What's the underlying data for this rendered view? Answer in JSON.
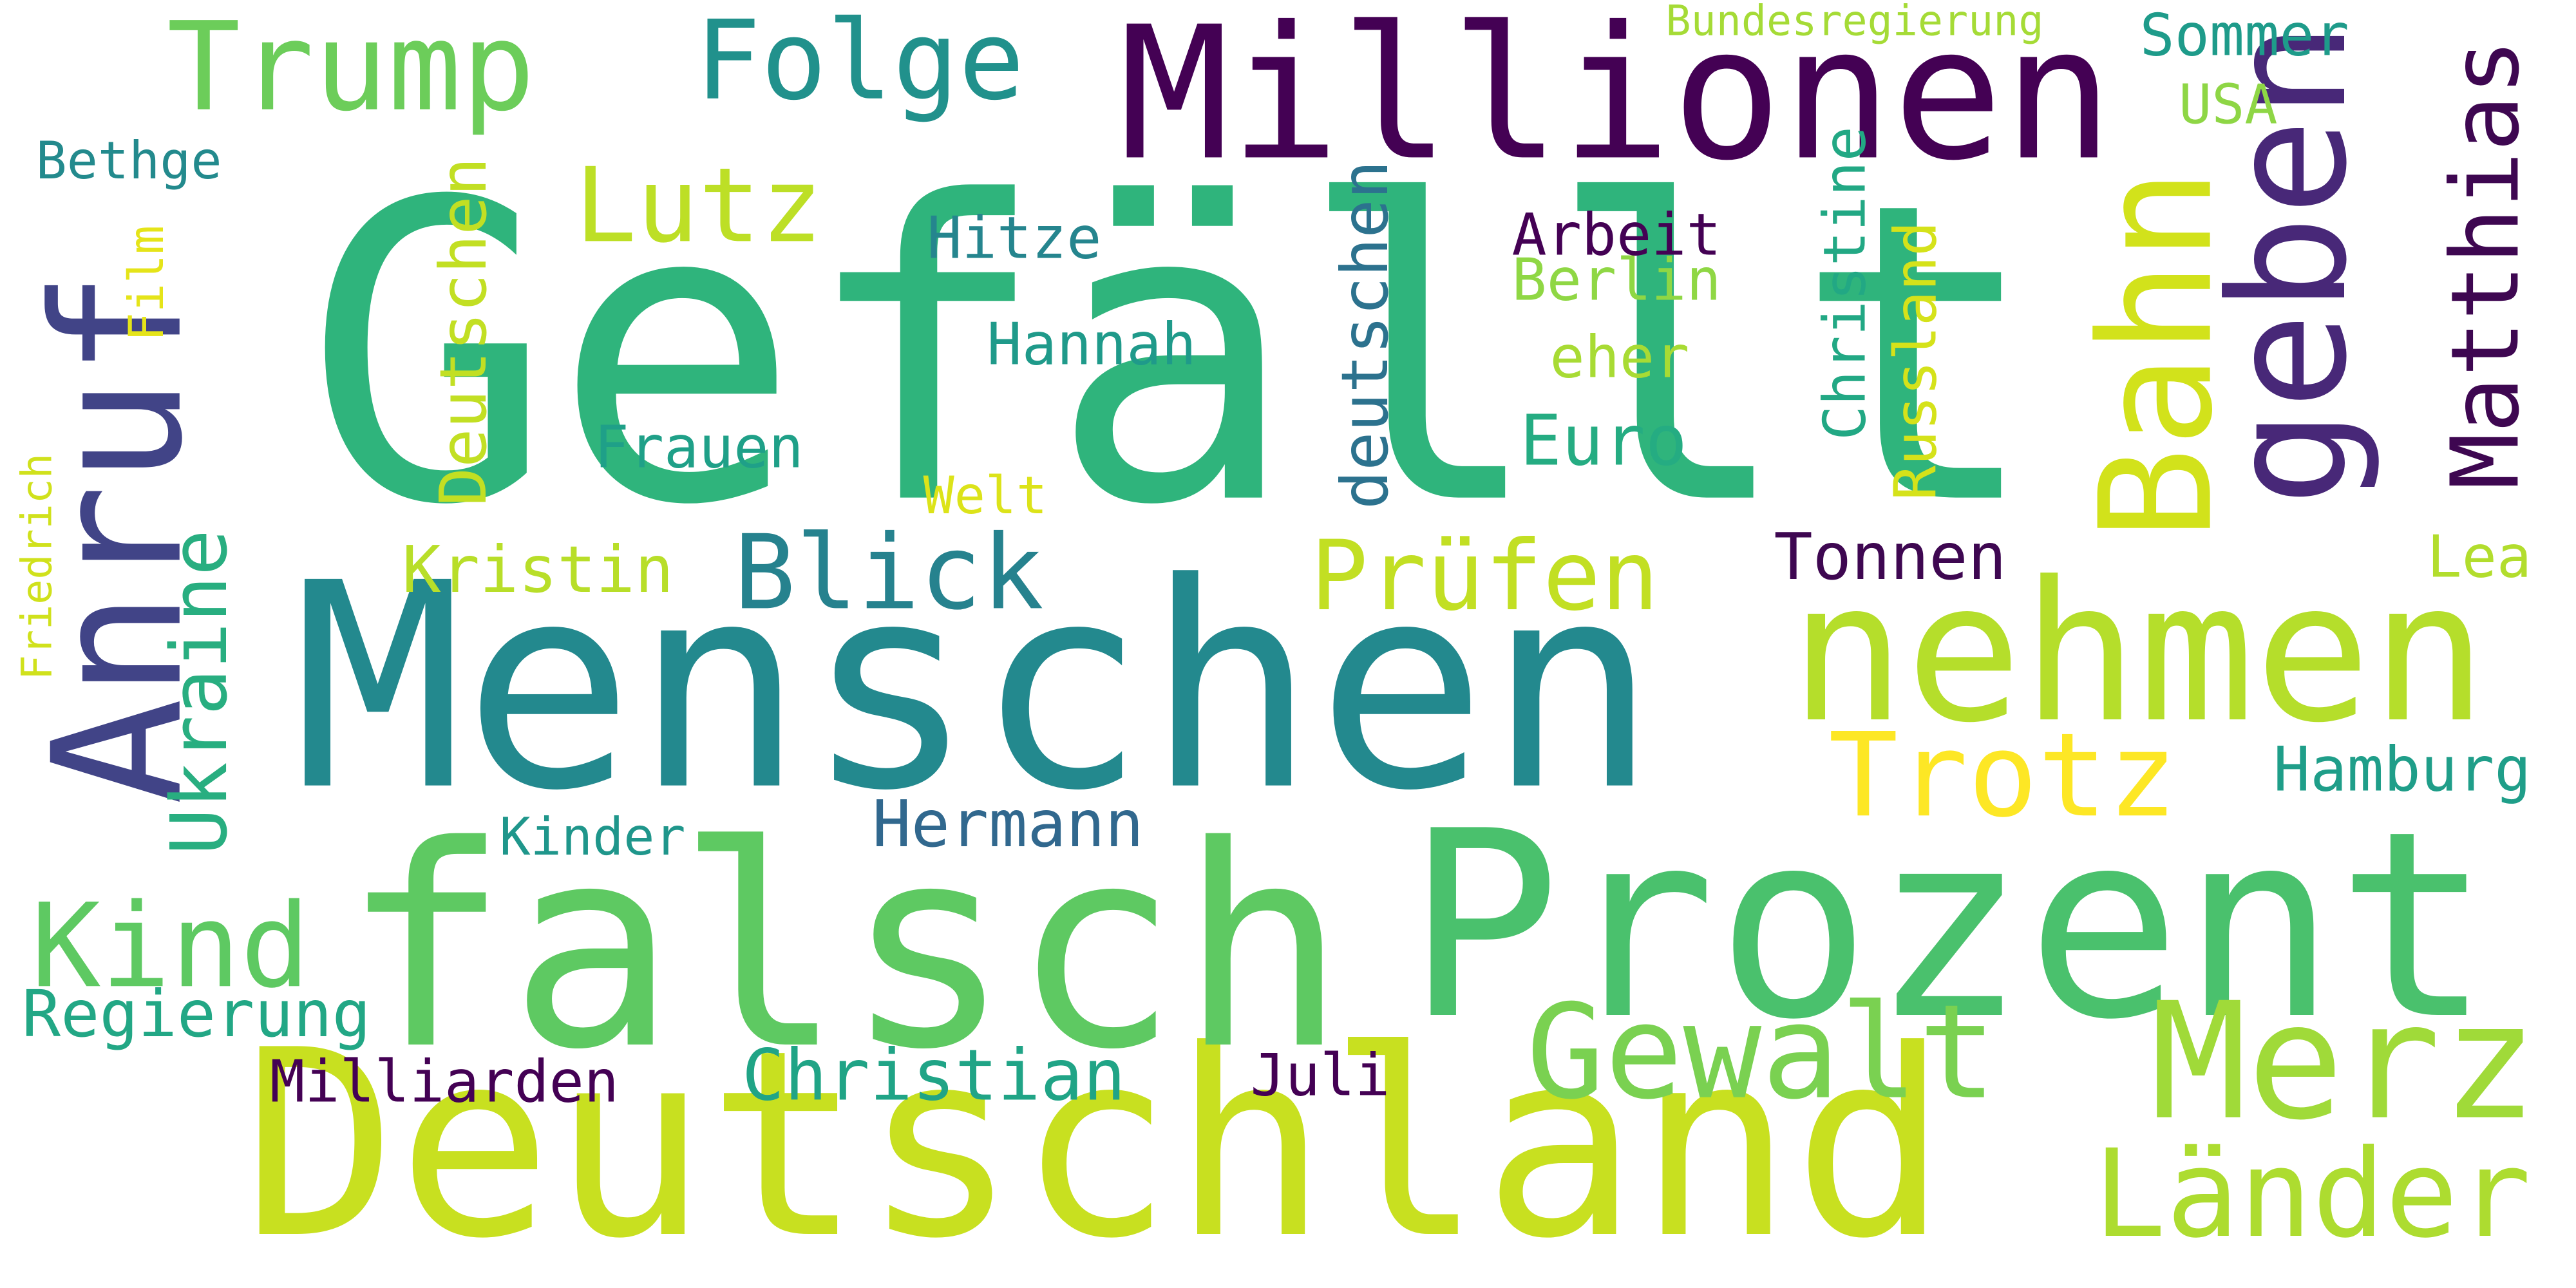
{
  "cloud": {
    "words": [
      {
        "text": "Gefällt",
        "color": "#2fb47c"
      },
      {
        "text": "Menschen",
        "color": "#23898e"
      },
      {
        "text": "Deutschland",
        "color": "#c8e020"
      },
      {
        "text": "falsch",
        "color": "#5ec962"
      },
      {
        "text": "Prozent",
        "color": "#4ac16d"
      },
      {
        "text": "Millionen",
        "color": "#440154"
      },
      {
        "text": "nehmen",
        "color": "#b5de2b"
      },
      {
        "text": "Anruf",
        "color": "#414487"
      },
      {
        "text": "Trump",
        "color": "#6ccd5a"
      },
      {
        "text": "geben",
        "color": "#482878"
      },
      {
        "text": "Bahn",
        "color": "#d2e21b"
      },
      {
        "text": "Trotz",
        "color": "#fde725"
      },
      {
        "text": "Merz",
        "color": "#a0da39"
      },
      {
        "text": "Folge",
        "color": "#21918c"
      },
      {
        "text": "Blick",
        "color": "#26828e"
      },
      {
        "text": "Gewalt",
        "color": "#7ad151"
      },
      {
        "text": "Länder",
        "color": "#addc30"
      },
      {
        "text": "Matthias",
        "color": "#3e0751"
      },
      {
        "text": "Kind",
        "color": "#5ec962"
      },
      {
        "text": "Lutz",
        "color": "#bddf26"
      },
      {
        "text": "Prüfen",
        "color": "#c2df23"
      },
      {
        "text": "Hermann",
        "color": "#31688e"
      },
      {
        "text": "Euro",
        "color": "#25ac82"
      },
      {
        "text": "Ukraine",
        "color": "#28ae80"
      },
      {
        "text": "Hamburg",
        "color": "#1f9e89"
      },
      {
        "text": "Christian",
        "color": "#20a486"
      },
      {
        "text": "Regierung",
        "color": "#22a785"
      },
      {
        "text": "Milliarden",
        "color": "#440154"
      },
      {
        "text": "deutschen",
        "color": "#2c728e"
      },
      {
        "text": "Deutschen",
        "color": "#c2df23"
      },
      {
        "text": "Tonnen",
        "color": "#3e0751"
      },
      {
        "text": "Russland",
        "color": "#d5e21a"
      },
      {
        "text": "Christine",
        "color": "#22a884"
      },
      {
        "text": "Frauen",
        "color": "#1fa088"
      },
      {
        "text": "Kristin",
        "color": "#b8de29"
      },
      {
        "text": "Hannah",
        "color": "#1f9a8a"
      },
      {
        "text": "Hitze",
        "color": "#25858e"
      },
      {
        "text": "Berlin",
        "color": "#8fd744"
      },
      {
        "text": "Arbeit",
        "color": "#440154"
      },
      {
        "text": "eher",
        "color": "#a8db34"
      },
      {
        "text": "Welt",
        "color": "#dce319"
      },
      {
        "text": "Sommer",
        "color": "#1e9b8a"
      },
      {
        "text": "USA",
        "color": "#8ed645"
      },
      {
        "text": "Bethge",
        "color": "#238a8d"
      },
      {
        "text": "Kinder",
        "color": "#1f968b"
      },
      {
        "text": "Juli",
        "color": "#440154"
      },
      {
        "text": "Lea",
        "color": "#b2dd2d"
      },
      {
        "text": "Friedrich",
        "color": "#d0e11c"
      },
      {
        "text": "Film",
        "color": "#e5e419"
      },
      {
        "text": "Bundesregierung",
        "color": "#a5db36"
      }
    ]
  }
}
